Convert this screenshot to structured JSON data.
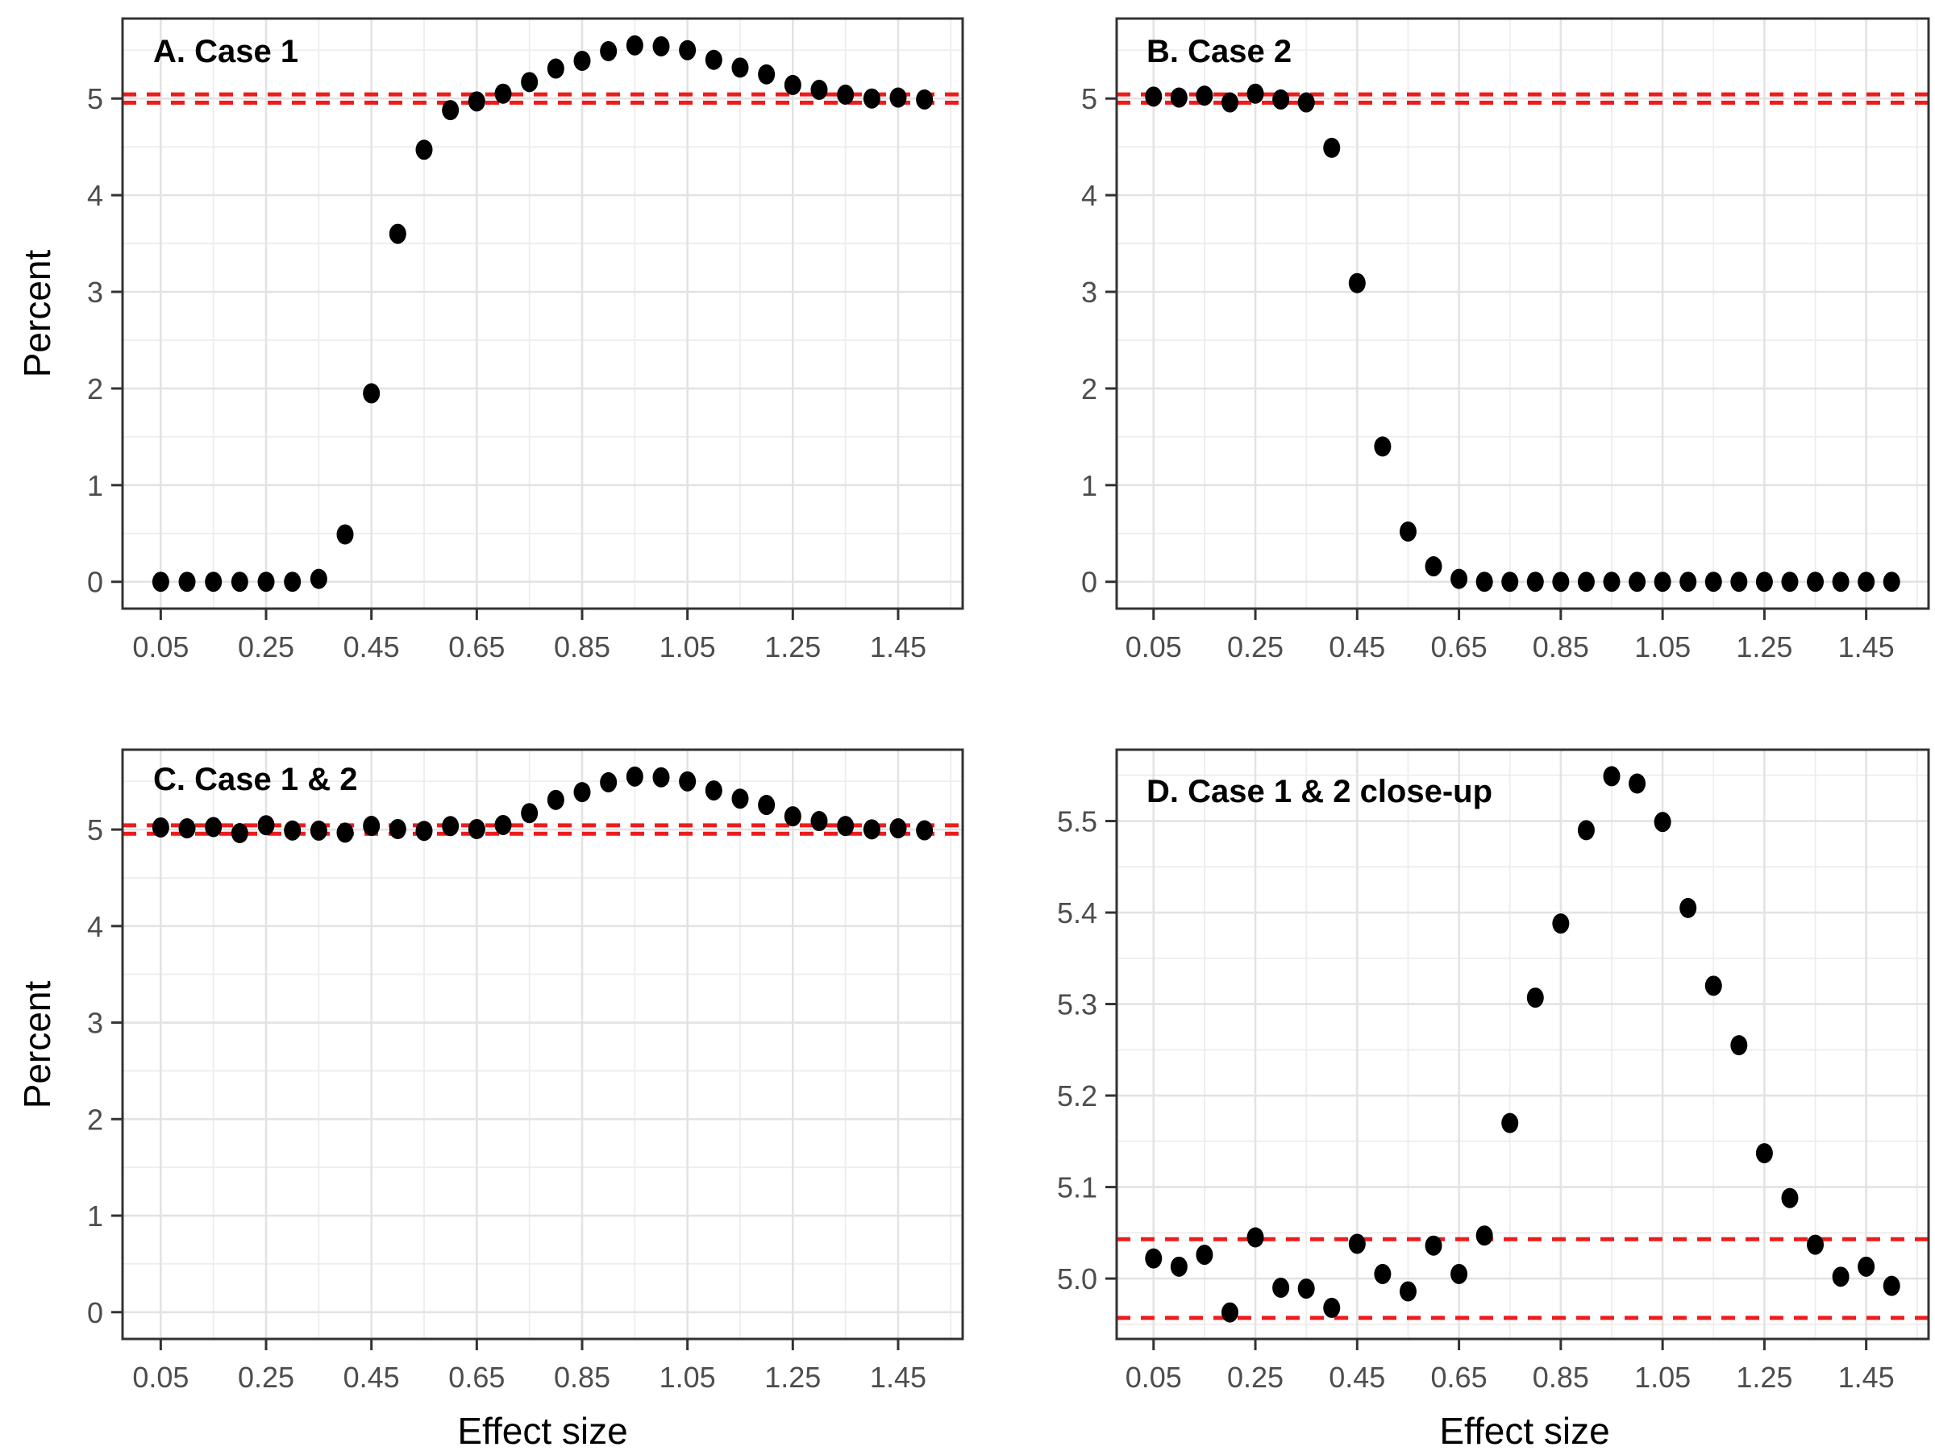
{
  "figure": {
    "y_axis_title": "Percent",
    "x_axis_title": "Effect size",
    "colors": {
      "background": "#FFFFFF",
      "point": "#000000",
      "ref_line": "#ED1C1C",
      "grid_major": "#E3E3E3",
      "grid_minor": "#EDEDED",
      "panel_border": "#333333",
      "tick_label": "#4D4D4D",
      "axis_title": "#000000"
    },
    "ref_line_values": [
      4.957,
      5.043
    ],
    "ref_line_style": "dashed"
  },
  "chart_data": [
    {
      "id": "A",
      "type": "scatter",
      "title": "A. Case 1",
      "xlabel": "",
      "ylabel": "Percent",
      "x": [
        0.05,
        0.1,
        0.15,
        0.2,
        0.25,
        0.3,
        0.35,
        0.4,
        0.45,
        0.5,
        0.55,
        0.6,
        0.65,
        0.7,
        0.75,
        0.8,
        0.85,
        0.9,
        0.95,
        1.0,
        1.05,
        1.1,
        1.15,
        1.2,
        1.25,
        1.3,
        1.35,
        1.4,
        1.45,
        1.5
      ],
      "y": [
        0.0,
        0.0,
        0.0,
        0.0,
        0.0,
        0.0,
        0.03,
        0.49,
        1.95,
        3.6,
        4.47,
        4.88,
        4.97,
        5.05,
        5.17,
        5.31,
        5.39,
        5.49,
        5.55,
        5.54,
        5.5,
        5.4,
        5.32,
        5.25,
        5.14,
        5.09,
        5.04,
        5.0,
        5.01,
        4.99
      ],
      "ref_lines": [
        4.957,
        5.043
      ],
      "xlim": [
        -0.0225,
        1.5725
      ],
      "ylim": [
        -0.2775,
        5.8275
      ],
      "x_ticks": {
        "values": [
          0.05,
          0.25,
          0.45,
          0.65,
          0.85,
          1.05,
          1.25,
          1.45
        ],
        "labels": [
          "0.05",
          "0.25",
          "0.45",
          "0.65",
          "0.85",
          "1.05",
          "1.25",
          "1.45"
        ]
      },
      "x_minor": [
        0.15,
        0.35,
        0.55,
        0.75,
        0.95,
        1.15,
        1.35,
        1.55
      ],
      "y_ticks": {
        "values": [
          0,
          1,
          2,
          3,
          4,
          5
        ],
        "labels": [
          "0",
          "1",
          "2",
          "3",
          "4",
          "5"
        ]
      },
      "y_minor": [
        0.5,
        1.5,
        2.5,
        3.5,
        4.5,
        5.5
      ],
      "grid": true,
      "legend": "none"
    },
    {
      "id": "B",
      "type": "scatter",
      "title": "B. Case 2",
      "xlabel": "",
      "ylabel": "",
      "x": [
        0.05,
        0.1,
        0.15,
        0.2,
        0.25,
        0.3,
        0.35,
        0.4,
        0.45,
        0.5,
        0.55,
        0.6,
        0.65,
        0.7,
        0.75,
        0.8,
        0.85,
        0.9,
        0.95,
        1.0,
        1.05,
        1.1,
        1.15,
        1.2,
        1.25,
        1.3,
        1.35,
        1.4,
        1.45,
        1.5
      ],
      "y": [
        5.02,
        5.01,
        5.03,
        4.96,
        5.05,
        4.99,
        4.96,
        4.49,
        3.09,
        1.4,
        0.52,
        0.16,
        0.03,
        0.0,
        0.0,
        0.0,
        0.0,
        0.0,
        0.0,
        0.0,
        0.0,
        0.0,
        0.0,
        0.0,
        0.0,
        0.0,
        0.0,
        0.0,
        0.0,
        0.0
      ],
      "ref_lines": [
        4.957,
        5.043
      ],
      "xlim": [
        -0.0225,
        1.5725
      ],
      "ylim": [
        -0.2775,
        5.8275
      ],
      "x_ticks": {
        "values": [
          0.05,
          0.25,
          0.45,
          0.65,
          0.85,
          1.05,
          1.25,
          1.45
        ],
        "labels": [
          "0.05",
          "0.25",
          "0.45",
          "0.65",
          "0.85",
          "1.05",
          "1.25",
          "1.45"
        ]
      },
      "x_minor": [
        0.15,
        0.35,
        0.55,
        0.75,
        0.95,
        1.15,
        1.35,
        1.55
      ],
      "y_ticks": {
        "values": [
          0,
          1,
          2,
          3,
          4,
          5
        ],
        "labels": [
          "0",
          "1",
          "2",
          "3",
          "4",
          "5"
        ]
      },
      "y_minor": [
        0.5,
        1.5,
        2.5,
        3.5,
        4.5,
        5.5
      ],
      "grid": true,
      "legend": "none"
    },
    {
      "id": "C",
      "type": "scatter",
      "title": "C. Case 1 & 2",
      "xlabel": "Effect size",
      "ylabel": "Percent",
      "x": [
        0.05,
        0.1,
        0.15,
        0.2,
        0.25,
        0.3,
        0.35,
        0.4,
        0.45,
        0.5,
        0.55,
        0.6,
        0.65,
        0.7,
        0.75,
        0.8,
        0.85,
        0.9,
        0.95,
        1.0,
        1.05,
        1.1,
        1.15,
        1.2,
        1.25,
        1.3,
        1.35,
        1.4,
        1.45,
        1.5
      ],
      "y": [
        5.022,
        5.013,
        5.026,
        4.963,
        5.045,
        4.99,
        4.989,
        4.968,
        5.038,
        5.005,
        4.986,
        5.036,
        5.005,
        5.047,
        5.17,
        5.307,
        5.388,
        5.49,
        5.549,
        5.541,
        5.499,
        5.405,
        5.32,
        5.255,
        5.137,
        5.088,
        5.037,
        5.002,
        5.013,
        4.992
      ],
      "ref_lines": [
        4.957,
        5.043
      ],
      "xlim": [
        -0.0225,
        1.5725
      ],
      "ylim": [
        -0.2775,
        5.8275
      ],
      "x_ticks": {
        "values": [
          0.05,
          0.25,
          0.45,
          0.65,
          0.85,
          1.05,
          1.25,
          1.45
        ],
        "labels": [
          "0.05",
          "0.25",
          "0.45",
          "0.65",
          "0.85",
          "1.05",
          "1.25",
          "1.45"
        ]
      },
      "x_minor": [
        0.15,
        0.35,
        0.55,
        0.75,
        0.95,
        1.15,
        1.35,
        1.55
      ],
      "y_ticks": {
        "values": [
          0,
          1,
          2,
          3,
          4,
          5
        ],
        "labels": [
          "0",
          "1",
          "2",
          "3",
          "4",
          "5"
        ]
      },
      "y_minor": [
        0.5,
        1.5,
        2.5,
        3.5,
        4.5,
        5.5
      ],
      "grid": true,
      "legend": "none"
    },
    {
      "id": "D",
      "type": "scatter",
      "title": "D. Case 1 & 2 close-up",
      "xlabel": "Effect size",
      "ylabel": "",
      "x": [
        0.05,
        0.1,
        0.15,
        0.2,
        0.25,
        0.3,
        0.35,
        0.4,
        0.45,
        0.5,
        0.55,
        0.6,
        0.65,
        0.7,
        0.75,
        0.8,
        0.85,
        0.9,
        0.95,
        1.0,
        1.05,
        1.1,
        1.15,
        1.2,
        1.25,
        1.3,
        1.35,
        1.4,
        1.45,
        1.5
      ],
      "y": [
        5.022,
        5.013,
        5.026,
        4.963,
        5.045,
        4.99,
        4.989,
        4.968,
        5.038,
        5.005,
        4.986,
        5.036,
        5.005,
        5.047,
        5.17,
        5.307,
        5.388,
        5.49,
        5.549,
        5.541,
        5.499,
        5.405,
        5.32,
        5.255,
        5.137,
        5.088,
        5.037,
        5.002,
        5.013,
        4.992
      ],
      "ref_lines": [
        4.957,
        5.043
      ],
      "xlim": [
        -0.0225,
        1.5725
      ],
      "ylim": [
        4.934,
        5.578
      ],
      "x_ticks": {
        "values": [
          0.05,
          0.25,
          0.45,
          0.65,
          0.85,
          1.05,
          1.25,
          1.45
        ],
        "labels": [
          "0.05",
          "0.25",
          "0.45",
          "0.65",
          "0.85",
          "1.05",
          "1.25",
          "1.45"
        ]
      },
      "x_minor": [
        0.15,
        0.35,
        0.55,
        0.75,
        0.95,
        1.15,
        1.35,
        1.55
      ],
      "y_ticks": {
        "values": [
          5.0,
          5.1,
          5.2,
          5.3,
          5.4,
          5.5
        ],
        "labels": [
          "5.0",
          "5.1",
          "5.2",
          "5.3",
          "5.4",
          "5.5"
        ]
      },
      "y_minor": [
        4.95,
        5.05,
        5.15,
        5.25,
        5.35,
        5.45,
        5.55
      ],
      "grid": true,
      "legend": "none"
    }
  ]
}
